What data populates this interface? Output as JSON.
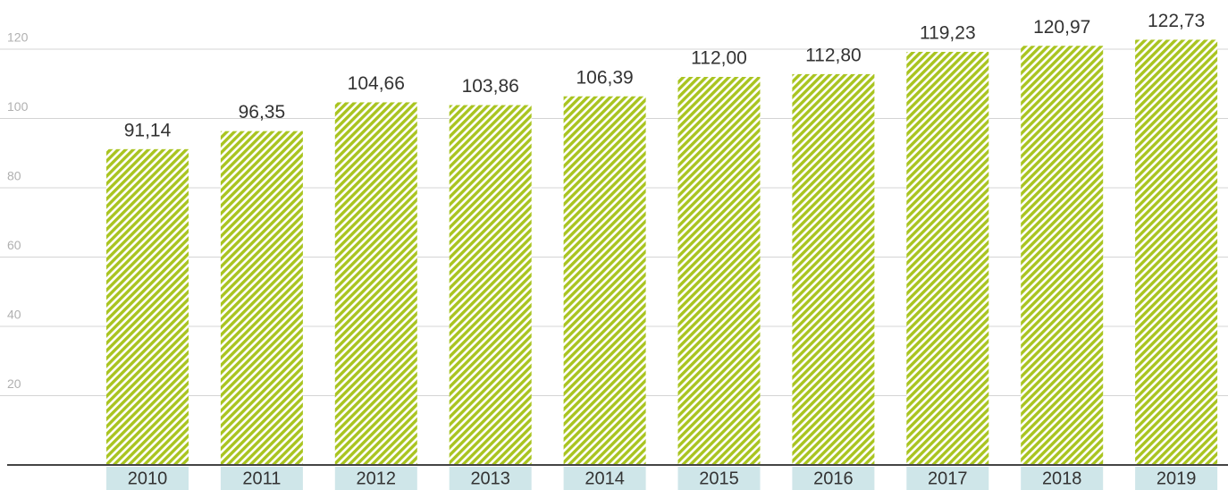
{
  "chart_data": {
    "type": "bar",
    "categories": [
      "2010",
      "2011",
      "2012",
      "2013",
      "2014",
      "2015",
      "2016",
      "2017",
      "2018",
      "2019"
    ],
    "values": [
      91.14,
      96.35,
      104.66,
      103.86,
      106.39,
      112.0,
      112.8,
      119.23,
      120.97,
      122.73
    ],
    "value_labels": [
      "91,14",
      "96,35",
      "104,66",
      "103,86",
      "106,39",
      "112,00",
      "112,80",
      "119,23",
      "120,97",
      "122,73"
    ],
    "color": "#a9c420",
    "ylim": [
      0,
      130
    ],
    "yticks": [
      20,
      40,
      60,
      80,
      100,
      120
    ],
    "grid": true
  }
}
